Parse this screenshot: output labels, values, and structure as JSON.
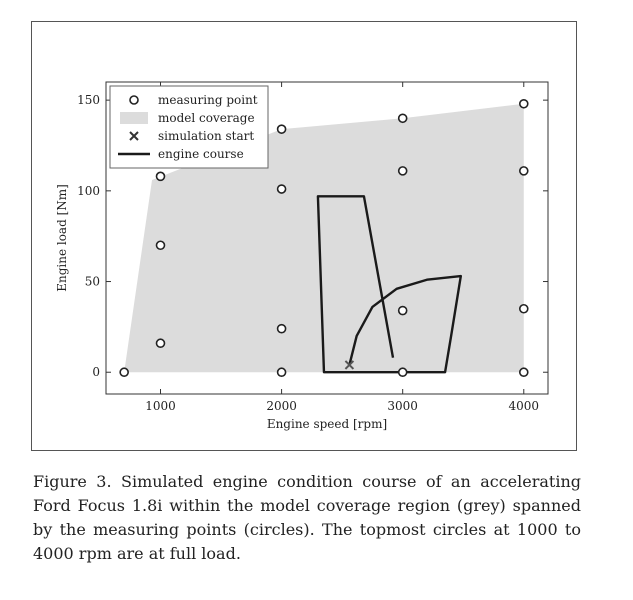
{
  "chart_data": {
    "type": "scatter",
    "xlabel": "Engine speed [rpm]",
    "ylabel": "Engine load [Nm]",
    "xlim": [
      550,
      4200
    ],
    "ylim": [
      -12,
      160
    ],
    "xticks": [
      1000,
      2000,
      3000,
      4000
    ],
    "yticks": [
      0,
      50,
      100,
      150
    ],
    "grid": false,
    "legend_position": "top-left",
    "legend": [
      "measuring point",
      "model coverage",
      "simulation start",
      "engine course"
    ],
    "colors": {
      "coverage": "#dcdcdc",
      "points": "#222222",
      "course": "#1a1a1a"
    },
    "measuring_points": [
      {
        "x": 700,
        "y": 0
      },
      {
        "x": 1000,
        "y": 16
      },
      {
        "x": 1000,
        "y": 70
      },
      {
        "x": 1000,
        "y": 108
      },
      {
        "x": 2000,
        "y": 0
      },
      {
        "x": 2000,
        "y": 24
      },
      {
        "x": 2000,
        "y": 101
      },
      {
        "x": 2000,
        "y": 134
      },
      {
        "x": 3000,
        "y": 0
      },
      {
        "x": 3000,
        "y": 34
      },
      {
        "x": 3000,
        "y": 111
      },
      {
        "x": 3000,
        "y": 140
      },
      {
        "x": 4000,
        "y": 0
      },
      {
        "x": 4000,
        "y": 35
      },
      {
        "x": 4000,
        "y": 111
      },
      {
        "x": 4000,
        "y": 148
      }
    ],
    "model_coverage": [
      {
        "x": 700,
        "y": 0
      },
      {
        "x": 930,
        "y": 106
      },
      {
        "x": 2000,
        "y": 134
      },
      {
        "x": 3000,
        "y": 140
      },
      {
        "x": 4000,
        "y": 148
      },
      {
        "x": 4000,
        "y": 0
      }
    ],
    "simulation_start": {
      "x": 2560,
      "y": 4
    },
    "engine_course": [
      {
        "x": 2560,
        "y": 4
      },
      {
        "x": 2620,
        "y": 20
      },
      {
        "x": 2750,
        "y": 36
      },
      {
        "x": 2950,
        "y": 46
      },
      {
        "x": 3200,
        "y": 51
      },
      {
        "x": 3480,
        "y": 53
      },
      {
        "x": 3400,
        "y": 20
      },
      {
        "x": 3350,
        "y": 0
      },
      {
        "x": 2350,
        "y": 0
      },
      {
        "x": 2300,
        "y": 97
      },
      {
        "x": 2680,
        "y": 97
      },
      {
        "x": 2920,
        "y": 8
      }
    ]
  },
  "caption": "Figure 3. Simulated engine condition course of an accelerating Ford Focus 1.8i within the model coverage region (grey) spanned by the measuring points (circles). The topmost circles at 1000 to 4000 rpm are at full load."
}
